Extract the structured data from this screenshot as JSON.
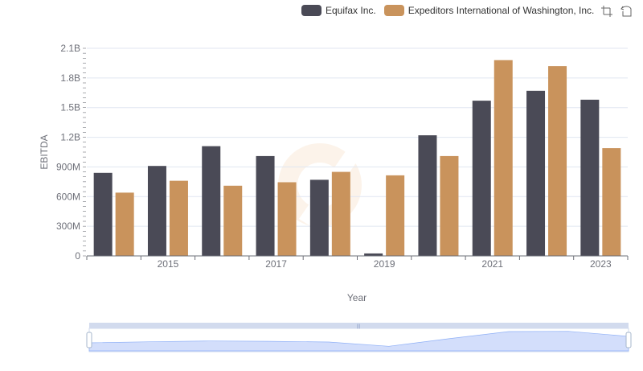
{
  "legend": {
    "series0": "Equifax Inc.",
    "series1": "Expeditors International of Washington, Inc."
  },
  "toolbox": {
    "icons": [
      "zoom-icon",
      "restore-icon"
    ]
  },
  "colors": {
    "equifax": "#4a4a56",
    "expeditors": "#c9935c",
    "grid": "#e0e6f1",
    "axis": "#6e7079",
    "slider_fill": "#d3defb",
    "slider_border": "#d2dbee"
  },
  "chart_data": {
    "type": "bar",
    "xlabel": "Year",
    "ylabel": "EBITDA",
    "ylim": [
      0,
      2100000000
    ],
    "y_ticks": [
      "0",
      "300M",
      "600M",
      "900M",
      "1.2B",
      "1.5B",
      "1.8B",
      "2.1B"
    ],
    "x_tick_labels": [
      "2015",
      "2017",
      "2019",
      "2021",
      "2023"
    ],
    "categories": [
      "2014",
      "2015",
      "2016",
      "2017",
      "2018",
      "2019",
      "2020",
      "2021",
      "2022",
      "2023"
    ],
    "grid": true,
    "legend_position": "top-right",
    "series": [
      {
        "name": "Equifax Inc.",
        "values": [
          840000000,
          910000000,
          1110000000,
          1010000000,
          770000000,
          25000000,
          1220000000,
          1570000000,
          1670000000,
          1580000000
        ]
      },
      {
        "name": "Expeditors International of Washington, Inc.",
        "values": [
          640000000,
          760000000,
          710000000,
          745000000,
          850000000,
          815000000,
          1010000000,
          1980000000,
          1920000000,
          1090000000
        ]
      }
    ]
  }
}
